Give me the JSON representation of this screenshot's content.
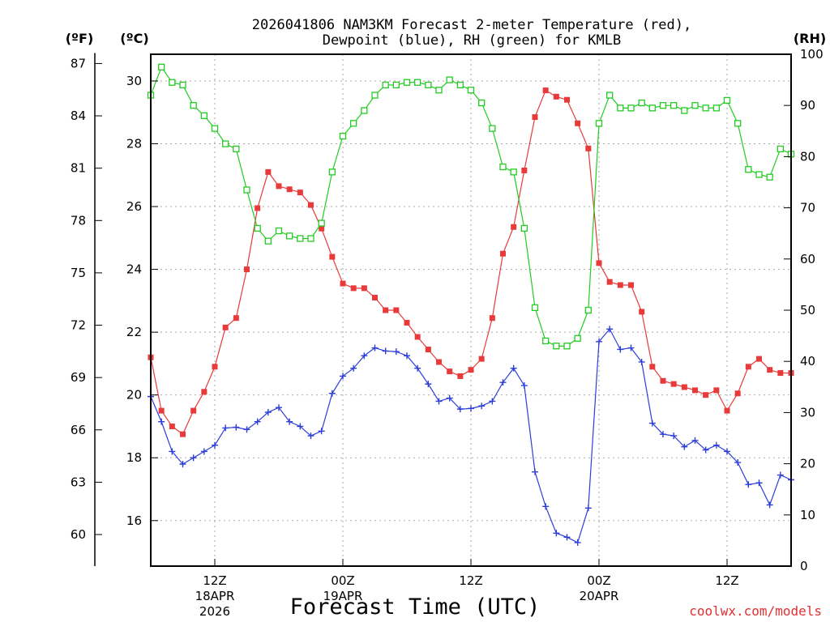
{
  "chart_data": {
    "type": "line",
    "title_line1": "2026041806 NAM3KM Forecast 2-meter Temperature (red),",
    "title_line2": "Dewpoint (blue), RH (green) for KMLB",
    "xlabel": "Forecast Time (UTC)",
    "credit": "coolwx.com/models",
    "unit_f": "(ºF)",
    "unit_c": "(ºC)",
    "unit_rh": "(RH)",
    "y_celsius": {
      "range": [
        14.55,
        30.85
      ],
      "ticks": [
        "16",
        "18",
        "20",
        "22",
        "24",
        "26",
        "28",
        "30"
      ]
    },
    "y_fahrenheit": {
      "ticks": [
        "60",
        "63",
        "66",
        "69",
        "72",
        "75",
        "78",
        "81",
        "84",
        "87"
      ]
    },
    "y_rh": {
      "range": [
        0,
        100
      ],
      "ticks": [
        "0",
        "10",
        "20",
        "30",
        "40",
        "50",
        "60",
        "70",
        "80",
        "90",
        "100"
      ]
    },
    "x_range_hours": [
      0,
      60
    ],
    "x_ticks": [
      {
        "hour": 6,
        "label": "12Z",
        "date": "18APR",
        "year": "2026"
      },
      {
        "hour": 18,
        "label": "00Z",
        "date": "19APR",
        "year": ""
      },
      {
        "hour": 30,
        "label": "12Z",
        "date": "",
        "year": ""
      },
      {
        "hour": 42,
        "label": "00Z",
        "date": "20APR",
        "year": ""
      },
      {
        "hour": 54,
        "label": "12Z",
        "date": "",
        "year": ""
      }
    ],
    "series": [
      {
        "name": "Temperature",
        "unit": "C",
        "color": "#e83a3a",
        "marker": "filled-square",
        "values": [
          21.2,
          19.5,
          19.0,
          18.75,
          19.5,
          20.1,
          20.9,
          22.15,
          22.45,
          24.0,
          25.95,
          27.1,
          26.65,
          26.55,
          26.45,
          26.05,
          25.3,
          24.4,
          23.55,
          23.4,
          23.4,
          23.1,
          22.7,
          22.7,
          22.3,
          21.85,
          21.45,
          21.05,
          20.75,
          20.6,
          20.8,
          21.15,
          22.45,
          24.5,
          25.35,
          27.15,
          28.85,
          29.7,
          29.5,
          29.4,
          28.65,
          27.85,
          24.2,
          23.6,
          23.5,
          23.5,
          22.65,
          20.9,
          20.45,
          20.35,
          20.25,
          20.15,
          20.0,
          20.15,
          19.5,
          20.05,
          20.9,
          21.15,
          20.8,
          20.7,
          20.7
        ]
      },
      {
        "name": "Dewpoint",
        "unit": "C",
        "color": "#2d3ed8",
        "marker": "plus",
        "values": [
          19.95,
          19.15,
          18.2,
          17.8,
          18.0,
          18.2,
          18.4,
          18.95,
          18.97,
          18.9,
          19.15,
          19.45,
          19.6,
          19.15,
          19.0,
          18.7,
          18.85,
          20.05,
          20.6,
          20.85,
          21.25,
          21.5,
          21.4,
          21.38,
          21.25,
          20.85,
          20.35,
          19.8,
          19.9,
          19.55,
          19.57,
          19.65,
          19.8,
          20.4,
          20.85,
          20.3,
          17.55,
          16.45,
          15.6,
          15.47,
          15.3,
          16.4,
          21.7,
          22.1,
          21.45,
          21.5,
          21.05,
          19.1,
          18.75,
          18.7,
          18.35,
          18.55,
          18.25,
          18.4,
          18.2,
          17.85,
          17.15,
          17.2,
          16.5,
          17.45,
          17.3
        ]
      },
      {
        "name": "RH",
        "unit": "%",
        "color": "#22cc22",
        "marker": "open-square",
        "values": [
          92,
          97.5,
          94.5,
          94,
          90,
          88,
          85.5,
          82.5,
          81.5,
          73.5,
          66,
          63.5,
          65.5,
          64.5,
          64,
          64,
          67,
          77,
          84,
          86.5,
          89,
          92,
          94,
          94,
          94.5,
          94.5,
          94,
          93,
          95,
          94,
          93,
          90.5,
          85.5,
          78,
          77,
          66,
          50.5,
          44,
          43,
          43,
          44.5,
          50,
          86.5,
          92,
          89.5,
          89.5,
          90.5,
          89.5,
          90,
          90,
          89,
          90,
          89.5,
          89.5,
          91,
          86.5,
          77.5,
          76.5,
          76,
          81.5,
          80.5
        ]
      }
    ]
  }
}
